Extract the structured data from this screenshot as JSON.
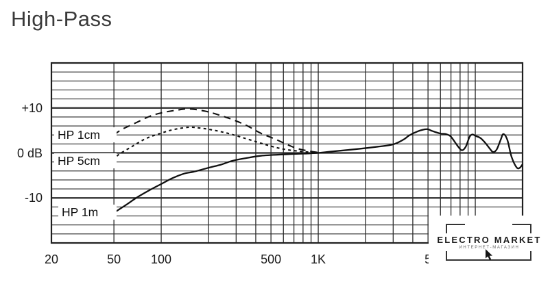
{
  "title": "High-Pass",
  "colors": {
    "ink": "#111111",
    "grid": "#2b2b2b",
    "border": "#1f1f1f",
    "title": "#3a3a3a"
  },
  "chart_data": {
    "type": "line",
    "title": "High-Pass",
    "x_scale": "log",
    "x_unit": "Hz",
    "y_unit": "dB",
    "x_range_hz": [
      20,
      20000
    ],
    "y_range_db": [
      -20,
      20
    ],
    "grid": {
      "x_lines_hz": [
        50,
        100,
        200,
        300,
        400,
        500,
        600,
        700,
        800,
        900,
        1000,
        2000,
        3000,
        4000,
        5000,
        6000,
        7000,
        8000,
        9000,
        10000
      ],
      "y_step_db": 2,
      "y_major_db": [
        10,
        0,
        -10
      ]
    },
    "x_ticks": [
      {
        "label": "20",
        "hz": 20
      },
      {
        "label": "50",
        "hz": 50
      },
      {
        "label": "100",
        "hz": 100
      },
      {
        "label": "500",
        "hz": 500
      },
      {
        "label": "1K",
        "hz": 1000
      },
      {
        "label": "5",
        "hz": 5000
      }
    ],
    "y_ticks": [
      {
        "label": "+10",
        "db": 10
      },
      {
        "label": "0 dB",
        "db": 0
      },
      {
        "label": "-10",
        "db": -10
      }
    ],
    "series": [
      {
        "name": "HP 1cm",
        "style": "long-dash",
        "points": [
          [
            50,
            4.0
          ],
          [
            56,
            5.2
          ],
          [
            69,
            6.7
          ],
          [
            84,
            8.1
          ],
          [
            100,
            8.9
          ],
          [
            125,
            9.5
          ],
          [
            150,
            9.8
          ],
          [
            190,
            9.3
          ],
          [
            230,
            8.5
          ],
          [
            285,
            7.4
          ],
          [
            350,
            6.1
          ],
          [
            430,
            4.4
          ],
          [
            530,
            3.1
          ],
          [
            650,
            1.7
          ],
          [
            750,
            0.9
          ],
          [
            880,
            0.4
          ],
          [
            1000,
            0.1
          ]
        ]
      },
      {
        "name": "HP 5cm",
        "style": "short-dash",
        "points": [
          [
            50,
            -1.8
          ],
          [
            53,
            -0.5
          ],
          [
            65,
            1.4
          ],
          [
            80,
            3.2
          ],
          [
            100,
            4.4
          ],
          [
            120,
            5.2
          ],
          [
            150,
            5.7
          ],
          [
            180,
            5.5
          ],
          [
            220,
            5.0
          ],
          [
            270,
            4.3
          ],
          [
            330,
            3.4
          ],
          [
            410,
            2.4
          ],
          [
            500,
            1.5
          ],
          [
            610,
            0.8
          ],
          [
            750,
            0.4
          ],
          [
            900,
            0.15
          ],
          [
            1000,
            0.1
          ]
        ]
      },
      {
        "name": "HP 1m",
        "style": "solid",
        "points": [
          [
            50,
            -13.3
          ],
          [
            60,
            -11.5
          ],
          [
            70,
            -9.9
          ],
          [
            85,
            -8.2
          ],
          [
            100,
            -6.9
          ],
          [
            118,
            -5.6
          ],
          [
            140,
            -4.6
          ],
          [
            160,
            -4.2
          ],
          [
            200,
            -3.3
          ],
          [
            240,
            -2.6
          ],
          [
            280,
            -1.8
          ],
          [
            340,
            -1.2
          ],
          [
            440,
            -0.6
          ],
          [
            630,
            -0.3
          ],
          [
            880,
            -0.1
          ],
          [
            1000,
            0.0
          ],
          [
            1200,
            0.3
          ],
          [
            1700,
            0.8
          ],
          [
            2400,
            1.4
          ],
          [
            3000,
            1.9
          ],
          [
            3500,
            3.0
          ],
          [
            3800,
            3.9
          ],
          [
            4300,
            4.8
          ],
          [
            4900,
            5.3
          ],
          [
            5300,
            4.9
          ],
          [
            6000,
            4.3
          ],
          [
            6500,
            4.2
          ],
          [
            7000,
            3.6
          ],
          [
            7700,
            1.6
          ],
          [
            8200,
            0.6
          ],
          [
            8700,
            1.4
          ],
          [
            9200,
            3.6
          ],
          [
            9600,
            4.1
          ],
          [
            10000,
            3.8
          ],
          [
            10800,
            3.3
          ],
          [
            11600,
            2.2
          ],
          [
            12400,
            0.9
          ],
          [
            13000,
            0.2
          ],
          [
            13700,
            0.8
          ],
          [
            14500,
            2.9
          ],
          [
            15100,
            4.2
          ],
          [
            16000,
            2.9
          ],
          [
            17000,
            -0.8
          ],
          [
            18300,
            -3.2
          ],
          [
            19200,
            -3.3
          ],
          [
            20000,
            -2.5
          ]
        ]
      }
    ]
  },
  "curve_labels": [
    {
      "text": "HP 1cm"
    },
    {
      "text": "HP 5cm"
    },
    {
      "text": "HP 1m"
    }
  ],
  "watermark": {
    "line1": "ELECTRO MARKET",
    "line2": "ИНТЕРНЕТ-МАГАЗИН"
  }
}
